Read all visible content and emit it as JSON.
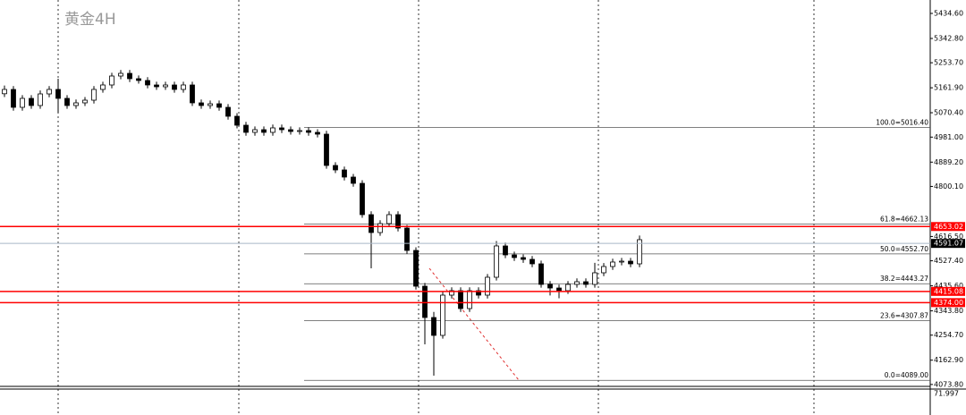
{
  "chart_data": {
    "type": "candlestick",
    "title": "黄金4H",
    "ylim": [
      4066.8,
      5483.8
    ],
    "yticks": [
      {
        "value": 5434.6,
        "label": "5434.60"
      },
      {
        "value": 5342.8,
        "label": "5342.80"
      },
      {
        "value": 5253.7,
        "label": "5253.70"
      },
      {
        "value": 5161.9,
        "label": "5161.90"
      },
      {
        "value": 5070.4,
        "label": "5070.40"
      },
      {
        "value": 4981,
        "label": "4981.00"
      },
      {
        "value": 4889.2,
        "label": "4889.20"
      },
      {
        "value": 4800.1,
        "label": "4800.10"
      },
      {
        "value": 4616.5,
        "label": "4616.50"
      },
      {
        "value": 4527.4,
        "label": "4527.40"
      },
      {
        "value": 4435.6,
        "label": "4435.60"
      },
      {
        "value": 4343.8,
        "label": "4343.80"
      },
      {
        "value": 4254.7,
        "label": "4254.70"
      },
      {
        "value": 4162.9,
        "label": "4162.90"
      },
      {
        "value": 4073.8,
        "label": "4073.80"
      }
    ],
    "up_color": "#ffffff",
    "down_color": "#000000",
    "open": [
      5140.0,
      5155.8,
      5090.2,
      5123.0,
      5096.8,
      5139.4,
      5155.8,
      5123.0,
      5096.8,
      5106.6,
      5116.4,
      5155.8,
      5172.2,
      5205.0,
      5214.8,
      5195.2,
      5188.6,
      5172.2,
      5165.6,
      5172.2,
      5155.8,
      5172.2,
      5106.6,
      5096.8,
      5103.3,
      5090.2,
      5057.4,
      5024.6,
      4998.4,
      5008.2,
      4998.4,
      5014.8,
      5008.2,
      5001.6,
      5004.9,
      4998.4,
      4991.8,
      4877.0,
      4860.6,
      4834.4,
      4811.4,
      4696.6,
      4631.0,
      4663.8,
      4696.6,
      4647.4,
      4565.4,
      4434.2,
      4319.4,
      4253.8,
      4401.4,
      4417.8,
      4352.2,
      4417.8,
      4401.4,
      4467.0,
      4581.8,
      4549.0,
      4539.2,
      4532.6,
      4516.2,
      4440.8,
      4427.6,
      4417.8,
      4440.8,
      4450.6,
      4440.8,
      4483.4,
      4506.4,
      4522.8,
      4526.0,
      4516.2
    ],
    "high": [
      5170,
      5168,
      5135,
      5135,
      5152,
      5168,
      5195.2,
      5135,
      5119,
      5128,
      5168,
      5184,
      5217,
      5227,
      5227,
      5207,
      5201,
      5184,
      5184,
      5184,
      5184,
      5184,
      5119,
      5115,
      5115,
      5102,
      5069,
      5037,
      5020,
      5020,
      5027,
      5027,
      5020,
      5017,
      5017,
      5010,
      5004,
      4889,
      4873,
      4846,
      4823,
      4709,
      4676,
      4709,
      4709,
      4659,
      4577,
      4446,
      4340,
      4413,
      4430,
      4430,
      4430,
      4430,
      4479,
      4600,
      4594,
      4561,
      4551,
      4545,
      4528,
      4453,
      4440,
      4453,
      4463,
      4463,
      4520,
      4519,
      4535,
      4538,
      4538,
      4620
    ],
    "low": [
      5128,
      5078,
      5078,
      5085,
      5085,
      5127,
      5070,
      5085,
      5085,
      5095,
      5104,
      5144,
      5160,
      5193,
      5183,
      5177,
      5160,
      5154,
      5154,
      5144,
      5144,
      5095,
      5085,
      5085,
      5078,
      5045,
      5013,
      4986,
      4986,
      4986,
      4986,
      4996,
      4990,
      4990,
      4986,
      4980,
      4865,
      4849,
      4822,
      4799,
      4685,
      4499.8,
      4619,
      4652,
      4635,
      4553,
      4422,
      4221.0,
      4106.2,
      4242,
      4389,
      4340,
      4340,
      4389,
      4389,
      4455,
      4537,
      4527,
      4520,
      4504,
      4429,
      4400,
      4390,
      4406,
      4429,
      4429,
      4429,
      4471,
      4494,
      4511,
      4504,
      4504
    ],
    "close": [
      5155.8,
      5090.2,
      5123.0,
      5096.8,
      5139.4,
      5155.8,
      5123.0,
      5096.8,
      5106.6,
      5116.4,
      5155.8,
      5172.2,
      5205.0,
      5214.8,
      5195.2,
      5188.6,
      5172.2,
      5165.6,
      5172.2,
      5155.8,
      5172.2,
      5106.6,
      5096.8,
      5103.3,
      5090.2,
      5057.4,
      5024.6,
      4998.4,
      5008.2,
      4998.4,
      5014.8,
      5008.2,
      5001.6,
      5004.9,
      4998.4,
      4991.8,
      4877.0,
      4860.6,
      4834.4,
      4811.4,
      4696.6,
      4631.0,
      4663.8,
      4696.6,
      4647.4,
      4565.4,
      4434.2,
      4319.4,
      4253.8,
      4401.4,
      4417.8,
      4352.2,
      4417.8,
      4401.4,
      4467.0,
      4581.8,
      4549.0,
      4539.2,
      4532.6,
      4516.2,
      4440.8,
      4427.6,
      4417.8,
      4440.8,
      4450.6,
      4440.8,
      4483.4,
      4506.4,
      4522.8,
      4526.0,
      4516.2,
      4604.8
    ],
    "hlines": [
      {
        "price": 4653.02,
        "color": "#ff0000"
      },
      {
        "price": 4591.07,
        "color": "#a9b8c8"
      },
      {
        "price": 4415.08,
        "color": "#ff0000"
      },
      {
        "price": {
          "value": 4374,
          "label": "4374.00"
        },
        "color": "#ff0000"
      }
    ],
    "fib_levels": [
      {
        "value": 5016.4,
        "label": "100.0=5016.40"
      },
      {
        "value": 4662.13,
        "label": "61.8=4662.13"
      },
      {
        "value": 4552.7,
        "label": "50.0=4552.70"
      },
      {
        "value": 4443.27,
        "label": "38.2=4443.27"
      },
      {
        "value": 4307.87,
        "label": "23.6=4307.87"
      },
      {
        "value": 4089,
        "label": "0.0=4089.00"
      }
    ],
    "indicator_value": 71.997
  }
}
